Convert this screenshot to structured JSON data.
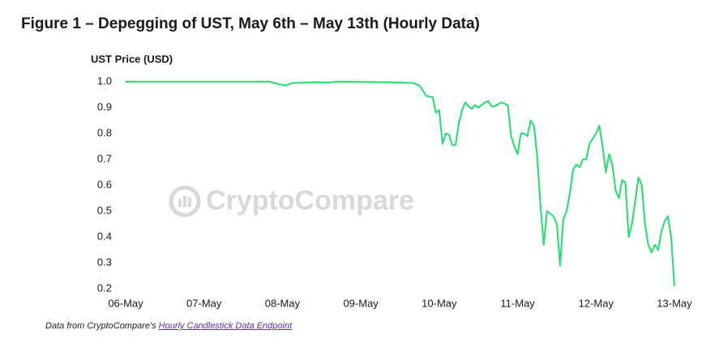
{
  "chart_data": {
    "type": "line",
    "title": "Figure 1 – Depegging of UST, May 6th – May 13th (Hourly Data)",
    "y_label": "UST Price (USD)",
    "watermark": "CryptoCompare",
    "source": {
      "prefix": "Data from CryptoCompare's",
      "link": "Hourly Candlestick Data Endpoint"
    },
    "xlim": [
      0,
      168
    ],
    "xticks": [
      {
        "value": 0,
        "label": "06-May"
      },
      {
        "value": 24,
        "label": "07-May"
      },
      {
        "value": 48,
        "label": "08-May"
      },
      {
        "value": 72,
        "label": "09-May"
      },
      {
        "value": 96,
        "label": "10-May"
      },
      {
        "value": 120,
        "label": "11-May"
      },
      {
        "value": 144,
        "label": "12-May"
      },
      {
        "value": 168,
        "label": "13-May"
      }
    ],
    "ylim": [
      0.2,
      1.0
    ],
    "yticks": [
      0.2,
      0.3,
      0.4,
      0.5,
      0.6,
      0.7,
      0.8,
      0.9,
      {
        "value": 1,
        "label": "1.0"
      }
    ],
    "grid": false,
    "series": [
      {
        "name": "UST",
        "color": "#33dd77",
        "x": [
          0,
          20,
          44,
          47,
          49,
          51,
          58,
          62,
          65,
          80,
          88,
          90,
          92,
          94,
          95,
          96,
          97,
          98,
          99,
          100,
          101,
          102,
          103,
          104,
          105,
          106,
          107,
          108,
          110,
          111,
          112,
          113,
          115,
          117,
          118,
          119,
          120,
          121,
          122,
          123,
          124,
          125,
          126,
          127,
          128,
          129,
          130,
          131,
          132,
          133,
          134,
          135,
          136,
          137,
          138,
          139,
          140,
          141,
          142,
          143,
          144,
          145,
          146,
          147,
          148,
          149,
          150,
          151,
          152,
          153,
          154,
          155,
          156,
          157,
          158,
          159,
          160,
          161,
          162,
          163,
          164,
          165,
          166,
          167,
          168
        ],
        "values": [
          1.0,
          1.0,
          1.0,
          0.99,
          0.985,
          0.995,
          0.998,
          0.997,
          1.0,
          0.998,
          0.995,
          0.985,
          0.945,
          0.94,
          0.88,
          0.89,
          0.76,
          0.8,
          0.795,
          0.755,
          0.755,
          0.84,
          0.89,
          0.92,
          0.905,
          0.895,
          0.91,
          0.9,
          0.92,
          0.925,
          0.905,
          0.905,
          0.92,
          0.91,
          0.79,
          0.75,
          0.72,
          0.8,
          0.8,
          0.79,
          0.85,
          0.83,
          0.71,
          0.52,
          0.37,
          0.5,
          0.49,
          0.48,
          0.45,
          0.29,
          0.47,
          0.5,
          0.57,
          0.66,
          0.68,
          0.67,
          0.7,
          0.7,
          0.76,
          0.78,
          0.8,
          0.83,
          0.75,
          0.65,
          0.72,
          0.68,
          0.58,
          0.55,
          0.62,
          0.61,
          0.4,
          0.45,
          0.54,
          0.63,
          0.6,
          0.45,
          0.37,
          0.34,
          0.37,
          0.35,
          0.42,
          0.46,
          0.48,
          0.4,
          0.21
        ]
      }
    ]
  }
}
